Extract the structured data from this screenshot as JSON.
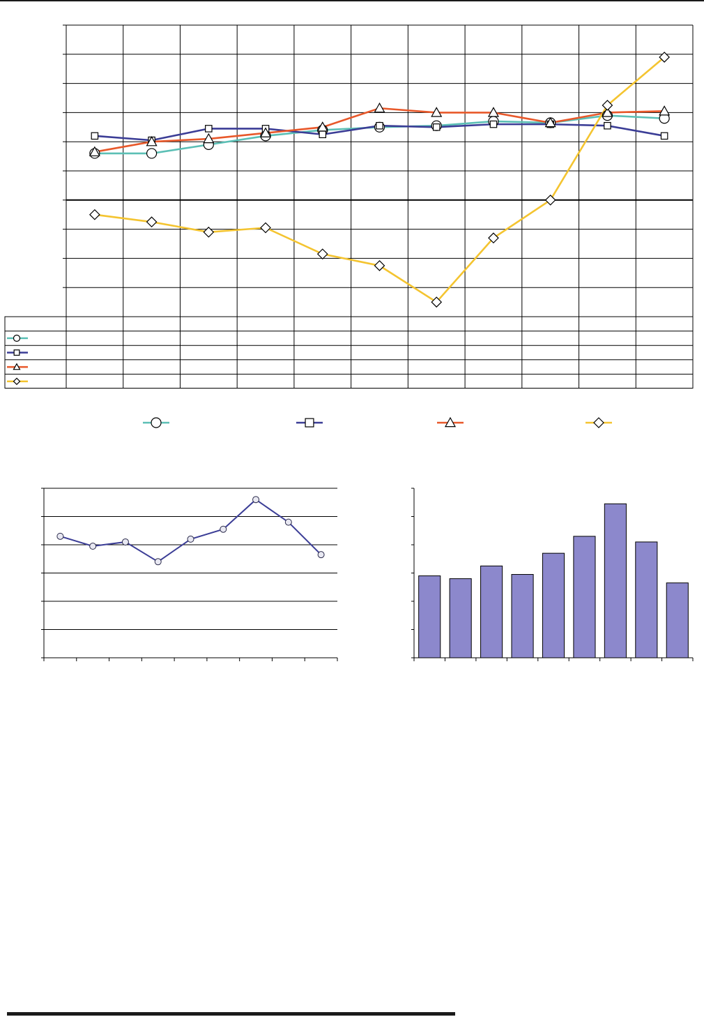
{
  "colors": {
    "teal": "#5bbfb5",
    "navy": "#3b3d96",
    "orange": "#e8582a",
    "gold": "#f4c430",
    "bar_fill": "#8c88cc",
    "grid": "#000000"
  },
  "chart_data": [
    {
      "type": "line",
      "title": "",
      "xlabel": "",
      "ylabel": "",
      "x_count": 11,
      "ylim": [
        -4,
        6
      ],
      "y_ticks": 10,
      "zero_line": 0,
      "grid": true,
      "legend": "bottom",
      "data_table": true,
      "series": [
        {
          "color": "teal",
          "marker": "circle",
          "values": [
            1.6,
            1.6,
            1.9,
            2.2,
            2.4,
            2.5,
            2.55,
            2.7,
            2.65,
            2.9,
            2.8
          ]
        },
        {
          "color": "navy",
          "marker": "square",
          "values": [
            2.2,
            2.05,
            2.45,
            2.45,
            2.25,
            2.55,
            2.5,
            2.6,
            2.6,
            2.55,
            2.2
          ]
        },
        {
          "color": "orange",
          "marker": "triangle",
          "values": [
            1.65,
            2.0,
            2.1,
            2.3,
            2.5,
            3.15,
            3.0,
            3.0,
            2.65,
            3.0,
            3.05
          ]
        },
        {
          "color": "gold",
          "marker": "diamond",
          "values": [
            -0.5,
            -0.75,
            -1.1,
            -0.95,
            -1.85,
            -2.25,
            -3.5,
            -1.3,
            0.0,
            3.25,
            4.9
          ]
        }
      ]
    },
    {
      "type": "line",
      "title": "",
      "xlabel": "",
      "ylabel": "",
      "x_count": 9,
      "ylim": [
        0,
        6
      ],
      "grid": true,
      "legend": "none",
      "series": [
        {
          "color": "navy",
          "marker": "circle",
          "values": [
            4.3,
            3.95,
            4.1,
            3.4,
            4.2,
            4.55,
            5.6,
            4.8,
            3.65
          ]
        }
      ]
    },
    {
      "type": "bar",
      "title": "",
      "xlabel": "",
      "ylabel": "",
      "x_count": 9,
      "ylim": [
        0,
        6
      ],
      "grid": false,
      "legend": "none",
      "values": [
        2.9,
        2.8,
        3.25,
        2.95,
        3.7,
        4.3,
        5.45,
        4.1,
        2.65
      ]
    }
  ]
}
